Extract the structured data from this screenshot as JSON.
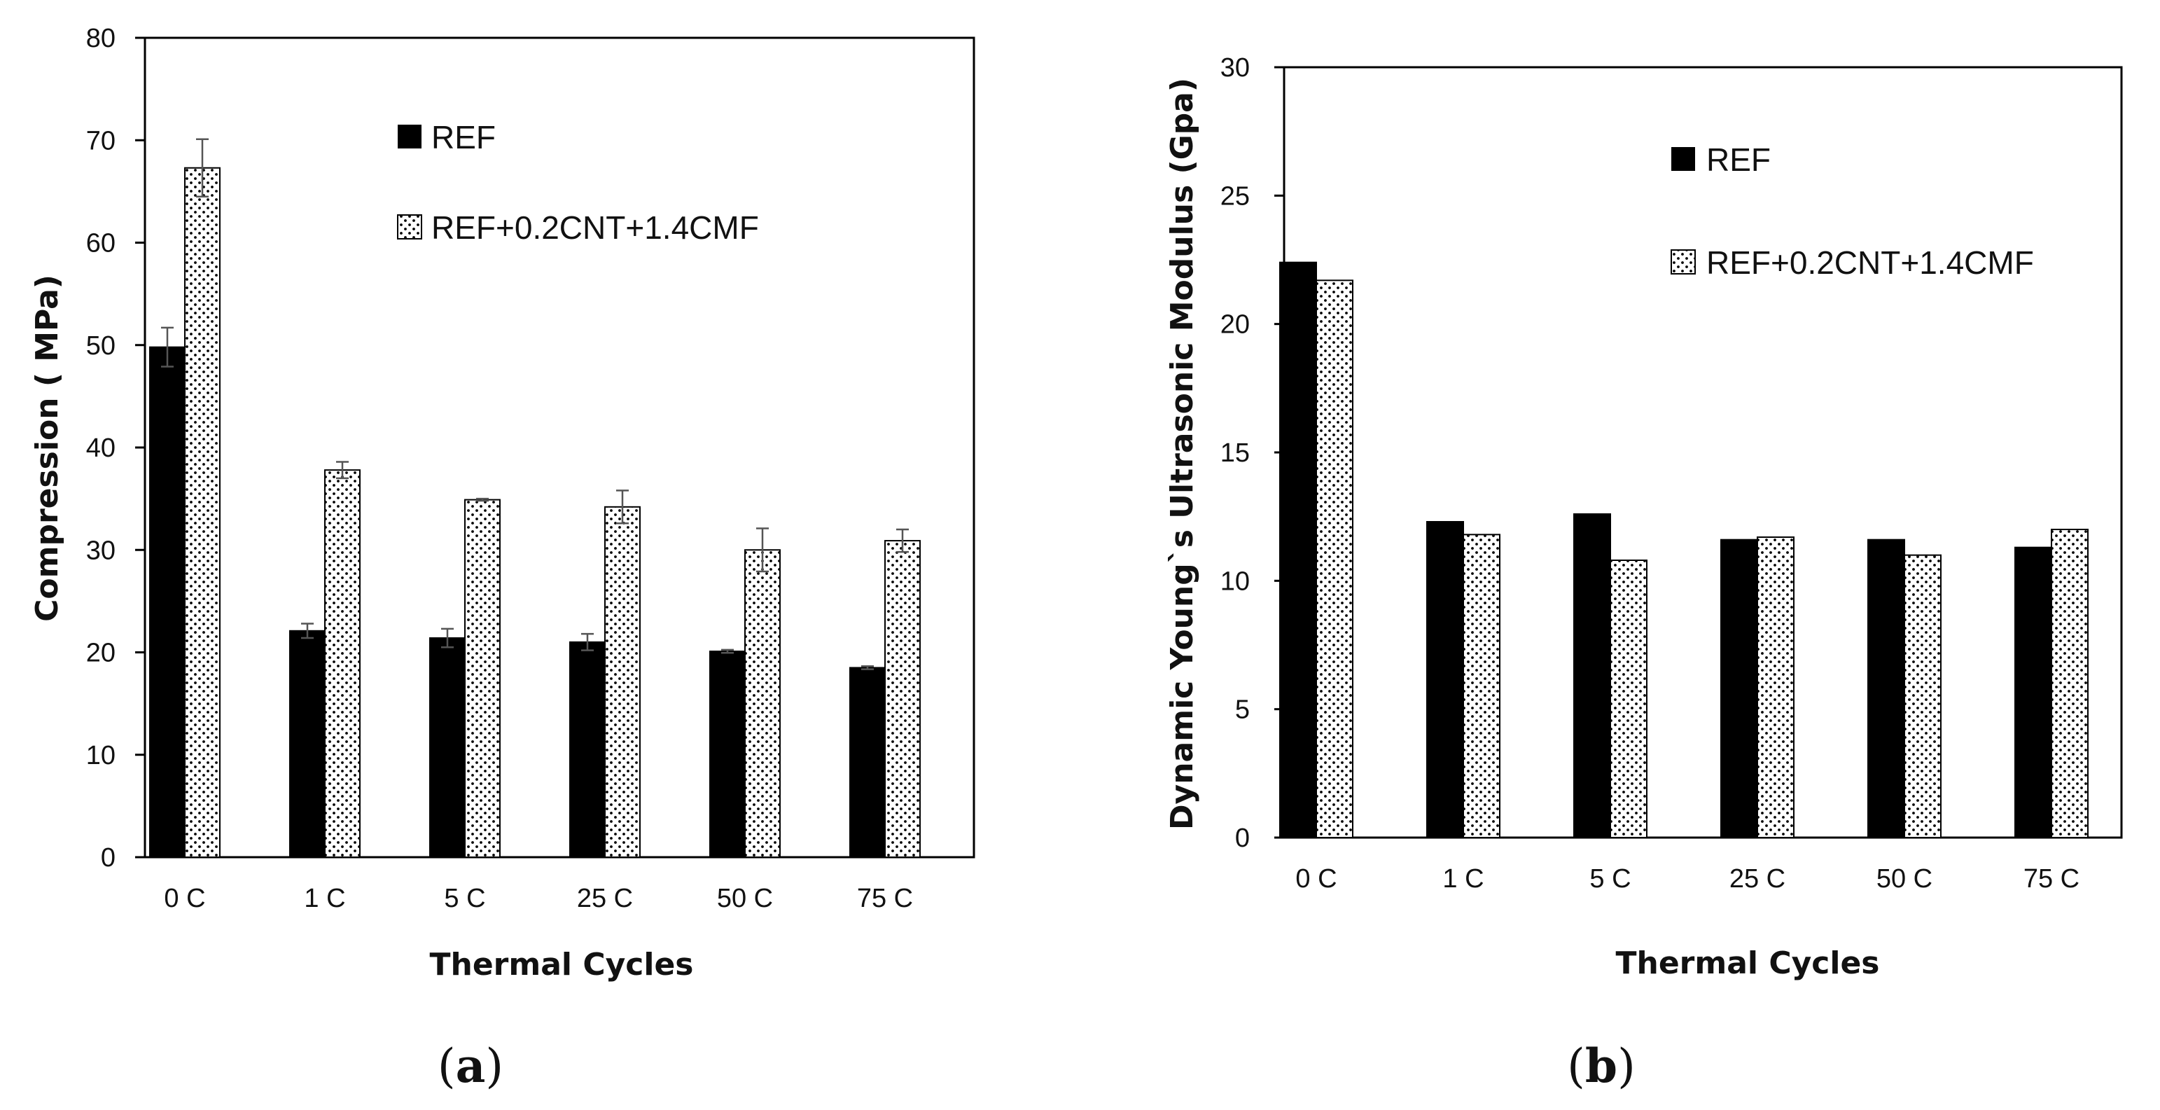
{
  "chart_data": [
    {
      "type": "bar",
      "panel": "a",
      "panel_label": "a",
      "xlabel": "Thermal Cycles",
      "ylabel": "Compression ( MPa)",
      "ylim": [
        0,
        80
      ],
      "yticks": [
        0,
        10,
        20,
        30,
        40,
        50,
        60,
        70,
        80
      ],
      "categories": [
        "0 C",
        "1 C",
        "5 C",
        "25 C",
        "50 C",
        "75 C"
      ],
      "legend_position": "top-center",
      "series": [
        {
          "name": "REF",
          "fill": "solid",
          "color": "#000000",
          "values": [
            49.8,
            22.1,
            21.4,
            21.0,
            20.1,
            18.5
          ],
          "errors": [
            1.9,
            0.7,
            0.9,
            0.8,
            0.15,
            0.15
          ]
        },
        {
          "name": "REF+0.2CNT+1.4CMF",
          "fill": "dotted",
          "color": "#000000",
          "values": [
            67.3,
            37.8,
            34.9,
            34.2,
            30.0,
            30.9
          ],
          "errors": [
            2.8,
            0.8,
            0.1,
            1.6,
            2.1,
            1.1
          ]
        }
      ]
    },
    {
      "type": "bar",
      "panel": "b",
      "panel_label": "b",
      "xlabel": "Thermal Cycles",
      "ylabel": "Dynamic Young`s Ultrasonic Modulus (Gpa)",
      "ylim": [
        0,
        30
      ],
      "yticks": [
        0,
        5,
        10,
        15,
        20,
        25,
        30
      ],
      "categories": [
        "0 C",
        "1 C",
        "5 C",
        "25 C",
        "50 C",
        "75 C"
      ],
      "legend_position": "top-right",
      "series": [
        {
          "name": "REF",
          "fill": "solid",
          "color": "#000000",
          "values": [
            22.4,
            12.3,
            12.6,
            11.6,
            11.6,
            11.3
          ]
        },
        {
          "name": "REF+0.2CNT+1.4CMF",
          "fill": "dotted",
          "color": "#000000",
          "values": [
            21.7,
            11.8,
            10.8,
            11.7,
            11.0,
            12.0
          ]
        }
      ]
    }
  ]
}
